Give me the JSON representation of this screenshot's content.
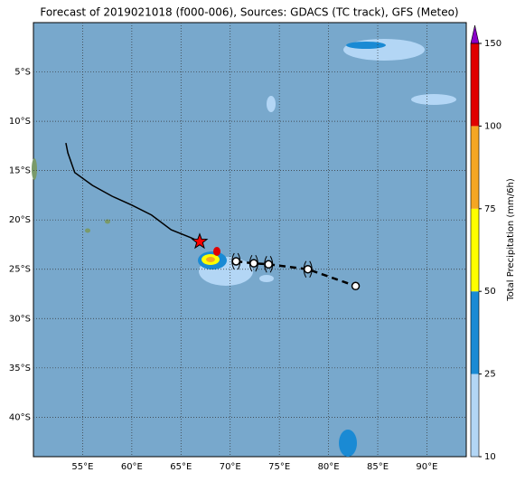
{
  "chart_data": {
    "type": "map",
    "title": "Forecast of 2019021018 (f000-006), Sources: GDACS (TC track), GFS (Meteo)",
    "xlim": [
      50,
      94
    ],
    "ylim": [
      -44,
      0
    ],
    "xticks": [
      {
        "value": 55,
        "label": "55°E"
      },
      {
        "value": 60,
        "label": "60°E"
      },
      {
        "value": 65,
        "label": "65°E"
      },
      {
        "value": 70,
        "label": "70°E"
      },
      {
        "value": 75,
        "label": "75°E"
      },
      {
        "value": 80,
        "label": "80°E"
      },
      {
        "value": 85,
        "label": "85°E"
      },
      {
        "value": 90,
        "label": "90°E"
      }
    ],
    "yticks": [
      {
        "value": -5,
        "label": "5°S"
      },
      {
        "value": -10,
        "label": "10°S"
      },
      {
        "value": -15,
        "label": "15°S"
      },
      {
        "value": -20,
        "label": "20°S"
      },
      {
        "value": -25,
        "label": "25°S"
      },
      {
        "value": -30,
        "label": "30°S"
      },
      {
        "value": -35,
        "label": "35°S"
      },
      {
        "value": -40,
        "label": "40°S"
      }
    ],
    "grid": true,
    "track": {
      "x": [
        53.3,
        53.5,
        54.2,
        56,
        58,
        60,
        62,
        64,
        66,
        66.9
      ],
      "y": [
        -12.2,
        -13.2,
        -15.2,
        -16.5,
        -17.6,
        -18.5,
        -19.5,
        -21,
        -21.8,
        -22.2
      ],
      "color": "#000000"
    },
    "current": {
      "x": 66.9,
      "y": -22.2,
      "color": "#ff0000"
    },
    "forecast": {
      "x": [
        70.6,
        72.4,
        73.9,
        77.9,
        82.75
      ],
      "y": [
        -24.2,
        -24.4,
        -24.5,
        -25.0,
        -26.7
      ]
    },
    "colorbar": {
      "label": "Total Precipitation (mm/6h)",
      "ticks": [
        10,
        25,
        50,
        75,
        100,
        150
      ],
      "colors": [
        "#b3d6f5",
        "#1a8ad4",
        "#ffff00",
        "#f5a623",
        "#e00000"
      ],
      "over_color": "#8a00c8"
    }
  }
}
